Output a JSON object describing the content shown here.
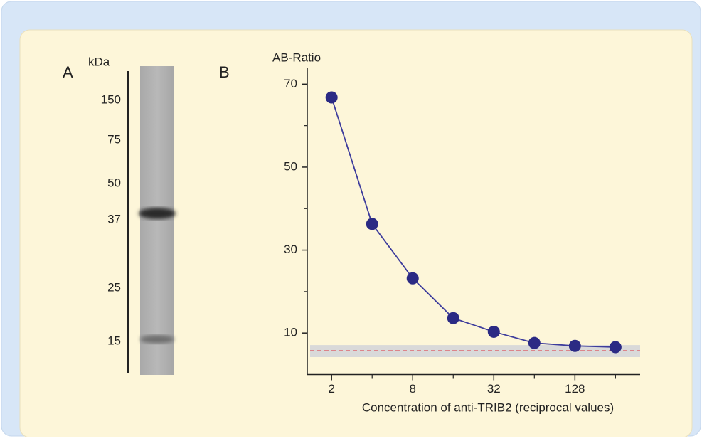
{
  "chart_data": [
    {
      "type": "blot",
      "label": "A",
      "axis_label": "kDa",
      "markers": [
        150,
        75,
        50,
        37,
        25,
        15
      ]
    },
    {
      "type": "line",
      "label": "B",
      "ylabel": "AB-Ratio",
      "xlabel": "Concentration of anti-TRIB2 (reciprocal values)",
      "x": [
        2,
        4,
        8,
        16,
        32,
        64,
        128,
        256
      ],
      "values": [
        66.8,
        36.3,
        23.2,
        13.6,
        10.3,
        7.6,
        6.9,
        6.6
      ],
      "color": "#2b2a84",
      "line_color": "#3d3c9c",
      "xscale": "log",
      "xlim": [
        1.32,
        390
      ],
      "xticks": [
        2,
        8,
        32,
        128
      ],
      "xminorticks": [
        4,
        16,
        64,
        256
      ],
      "ylim": [
        0,
        74
      ],
      "yticks": [
        10,
        30,
        50,
        70
      ],
      "yminorticks": [
        20,
        40,
        60
      ],
      "background_band": [
        4.2,
        7.1
      ],
      "band_color": "#d9d9d9",
      "cutoff": 5.7,
      "cutoff_color": "#e0303a"
    }
  ]
}
